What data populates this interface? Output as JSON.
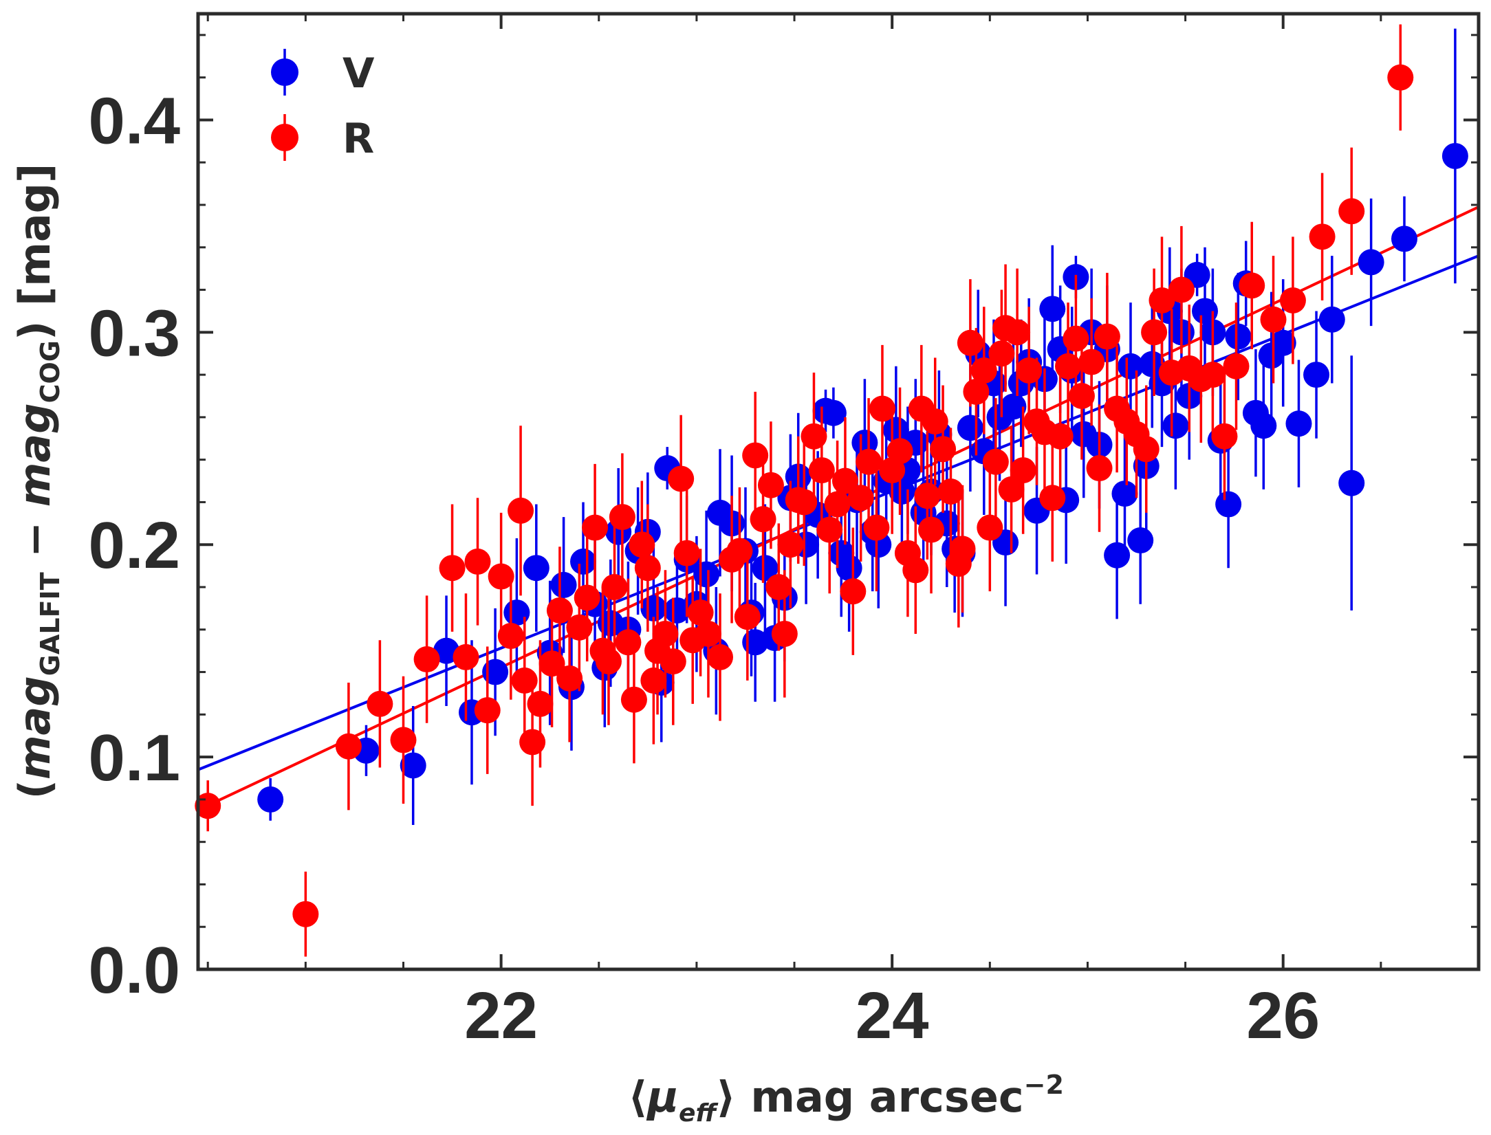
{
  "chart_data": {
    "type": "scatter",
    "xlabel": "⟨μ_eff⟩ mag arcsec⁻²",
    "xlabel_parts": {
      "open": "⟨",
      "mu": "μ",
      "sub": "eff",
      "rest": "⟩ mag arcsec",
      "sup": "−2"
    },
    "ylabel": "(mag_GALFIT − mag_COG) [mag]",
    "ylabel_parts": {
      "open": "(",
      "m1": "mag",
      "s1": "GALFIT",
      "minus": " − ",
      "m2": "mag",
      "s2": "COG",
      "rest": ") [mag]"
    },
    "xlim": [
      20.45,
      27.0
    ],
    "ylim": [
      0.0,
      0.45
    ],
    "xticks": [
      22,
      24,
      26
    ],
    "xtick_labels": [
      "22",
      "24",
      "26"
    ],
    "yticks": [
      0.0,
      0.1,
      0.2,
      0.3,
      0.4
    ],
    "ytick_labels": [
      "0.0",
      "0.1",
      "0.2",
      "0.3",
      "0.4"
    ],
    "grid": false,
    "legend": {
      "placement": "top-left",
      "entries": [
        {
          "label": "V",
          "color": "#0000ee"
        },
        {
          "label": "R",
          "color": "#ff0000"
        }
      ]
    },
    "series": [
      {
        "name": "V",
        "color": "#0000ee",
        "fit": {
          "x": [
            20.45,
            27.0
          ],
          "y": [
            0.094,
            0.336
          ]
        },
        "points": [
          [
            20.82,
            0.08,
            0.01
          ],
          [
            21.31,
            0.103,
            0.012
          ],
          [
            21.55,
            0.096,
            0.028
          ],
          [
            21.72,
            0.15,
            0.026
          ],
          [
            21.85,
            0.121,
            0.034
          ],
          [
            21.97,
            0.14,
            0.03
          ],
          [
            22.08,
            0.168,
            0.035
          ],
          [
            22.18,
            0.189,
            0.03
          ],
          [
            22.25,
            0.149,
            0.034
          ],
          [
            22.32,
            0.181,
            0.032
          ],
          [
            22.36,
            0.133,
            0.03
          ],
          [
            22.42,
            0.192,
            0.028
          ],
          [
            22.48,
            0.172,
            0.03
          ],
          [
            22.53,
            0.142,
            0.028
          ],
          [
            22.56,
            0.163,
            0.03
          ],
          [
            22.6,
            0.206,
            0.03
          ],
          [
            22.65,
            0.16,
            0.032
          ],
          [
            22.7,
            0.197,
            0.03
          ],
          [
            22.75,
            0.206,
            0.028
          ],
          [
            22.78,
            0.17,
            0.03
          ],
          [
            22.82,
            0.135,
            0.028
          ],
          [
            22.85,
            0.236,
            0.01
          ],
          [
            22.9,
            0.169,
            0.028
          ],
          [
            22.95,
            0.193,
            0.03
          ],
          [
            23.0,
            0.172,
            0.032
          ],
          [
            23.05,
            0.186,
            0.03
          ],
          [
            23.1,
            0.15,
            0.03
          ],
          [
            23.12,
            0.215,
            0.03
          ],
          [
            23.18,
            0.21,
            0.032
          ],
          [
            23.25,
            0.197,
            0.03
          ],
          [
            23.28,
            0.168,
            0.03
          ],
          [
            23.3,
            0.154,
            0.028
          ],
          [
            23.35,
            0.189,
            0.03
          ],
          [
            23.4,
            0.156,
            0.03
          ],
          [
            23.45,
            0.175,
            0.03
          ],
          [
            23.48,
            0.222,
            0.03
          ],
          [
            23.52,
            0.232,
            0.03
          ],
          [
            23.56,
            0.2,
            0.028
          ],
          [
            23.62,
            0.214,
            0.03
          ],
          [
            23.66,
            0.263,
            0.01
          ],
          [
            23.7,
            0.262,
            0.012
          ],
          [
            23.74,
            0.196,
            0.03
          ],
          [
            23.78,
            0.189,
            0.03
          ],
          [
            23.82,
            0.221,
            0.03
          ],
          [
            23.86,
            0.248,
            0.03
          ],
          [
            23.9,
            0.206,
            0.028
          ],
          [
            23.93,
            0.2,
            0.03
          ],
          [
            23.97,
            0.23,
            0.03
          ],
          [
            24.02,
            0.254,
            0.03
          ],
          [
            24.05,
            0.225,
            0.03
          ],
          [
            24.08,
            0.235,
            0.03
          ],
          [
            24.12,
            0.248,
            0.03
          ],
          [
            24.16,
            0.215,
            0.03
          ],
          [
            24.2,
            0.225,
            0.03
          ],
          [
            24.24,
            0.252,
            0.03
          ],
          [
            24.28,
            0.21,
            0.03
          ],
          [
            24.32,
            0.198,
            0.03
          ],
          [
            24.36,
            0.196,
            0.03
          ],
          [
            24.4,
            0.255,
            0.03
          ],
          [
            24.44,
            0.29,
            0.03
          ],
          [
            24.47,
            0.244,
            0.03
          ],
          [
            24.52,
            0.276,
            0.03
          ],
          [
            24.55,
            0.26,
            0.03
          ],
          [
            24.58,
            0.201,
            0.03
          ],
          [
            24.62,
            0.265,
            0.03
          ],
          [
            24.66,
            0.276,
            0.03
          ],
          [
            24.7,
            0.286,
            0.03
          ],
          [
            24.74,
            0.216,
            0.03
          ],
          [
            24.78,
            0.278,
            0.03
          ],
          [
            24.82,
            0.311,
            0.03
          ],
          [
            24.86,
            0.292,
            0.03
          ],
          [
            24.89,
            0.221,
            0.03
          ],
          [
            24.92,
            0.282,
            0.03
          ],
          [
            24.94,
            0.326,
            0.01
          ],
          [
            24.98,
            0.252,
            0.03
          ],
          [
            25.02,
            0.3,
            0.03
          ],
          [
            25.06,
            0.247,
            0.03
          ],
          [
            25.1,
            0.292,
            0.03
          ],
          [
            25.15,
            0.195,
            0.03
          ],
          [
            25.19,
            0.224,
            0.03
          ],
          [
            25.22,
            0.284,
            0.03
          ],
          [
            25.27,
            0.202,
            0.03
          ],
          [
            25.3,
            0.237,
            0.03
          ],
          [
            25.33,
            0.285,
            0.03
          ],
          [
            25.38,
            0.276,
            0.03
          ],
          [
            25.42,
            0.31,
            0.03
          ],
          [
            25.45,
            0.256,
            0.03
          ],
          [
            25.48,
            0.3,
            0.03
          ],
          [
            25.52,
            0.27,
            0.03
          ],
          [
            25.56,
            0.327,
            0.01
          ],
          [
            25.6,
            0.31,
            0.03
          ],
          [
            25.64,
            0.3,
            0.03
          ],
          [
            25.68,
            0.249,
            0.03
          ],
          [
            25.72,
            0.219,
            0.03
          ],
          [
            25.77,
            0.298,
            0.03
          ],
          [
            25.81,
            0.323,
            0.02
          ],
          [
            25.86,
            0.262,
            0.03
          ],
          [
            25.9,
            0.256,
            0.03
          ],
          [
            25.94,
            0.289,
            0.03
          ],
          [
            26.0,
            0.295,
            0.03
          ],
          [
            26.08,
            0.257,
            0.03
          ],
          [
            26.17,
            0.28,
            0.03
          ],
          [
            26.25,
            0.306,
            0.03
          ],
          [
            26.35,
            0.229,
            0.06
          ],
          [
            26.45,
            0.333,
            0.03
          ],
          [
            26.62,
            0.344,
            0.02
          ],
          [
            26.88,
            0.383,
            0.06
          ]
        ]
      },
      {
        "name": "R",
        "color": "#ff0000",
        "fit": {
          "x": [
            20.45,
            27.0
          ],
          "y": [
            0.075,
            0.359
          ]
        },
        "points": [
          [
            20.5,
            0.077,
            0.012
          ],
          [
            21.0,
            0.026,
            0.02
          ],
          [
            21.22,
            0.105,
            0.03
          ],
          [
            21.38,
            0.125,
            0.03
          ],
          [
            21.5,
            0.108,
            0.03
          ],
          [
            21.62,
            0.146,
            0.03
          ],
          [
            21.75,
            0.189,
            0.03
          ],
          [
            21.82,
            0.147,
            0.03
          ],
          [
            21.88,
            0.192,
            0.03
          ],
          [
            21.93,
            0.122,
            0.03
          ],
          [
            22.0,
            0.185,
            0.03
          ],
          [
            22.05,
            0.157,
            0.03
          ],
          [
            22.1,
            0.216,
            0.04
          ],
          [
            22.12,
            0.136,
            0.03
          ],
          [
            22.16,
            0.107,
            0.03
          ],
          [
            22.2,
            0.125,
            0.03
          ],
          [
            22.26,
            0.144,
            0.03
          ],
          [
            22.3,
            0.169,
            0.03
          ],
          [
            22.35,
            0.137,
            0.03
          ],
          [
            22.4,
            0.161,
            0.03
          ],
          [
            22.44,
            0.175,
            0.03
          ],
          [
            22.48,
            0.208,
            0.03
          ],
          [
            22.52,
            0.15,
            0.03
          ],
          [
            22.55,
            0.145,
            0.03
          ],
          [
            22.58,
            0.18,
            0.03
          ],
          [
            22.62,
            0.213,
            0.03
          ],
          [
            22.65,
            0.154,
            0.03
          ],
          [
            22.68,
            0.127,
            0.03
          ],
          [
            22.72,
            0.2,
            0.03
          ],
          [
            22.75,
            0.189,
            0.03
          ],
          [
            22.78,
            0.136,
            0.03
          ],
          [
            22.8,
            0.15,
            0.03
          ],
          [
            22.84,
            0.158,
            0.03
          ],
          [
            22.88,
            0.145,
            0.03
          ],
          [
            22.92,
            0.231,
            0.03
          ],
          [
            22.95,
            0.196,
            0.03
          ],
          [
            22.98,
            0.155,
            0.03
          ],
          [
            23.02,
            0.168,
            0.03
          ],
          [
            23.06,
            0.158,
            0.03
          ],
          [
            23.12,
            0.147,
            0.03
          ],
          [
            23.18,
            0.193,
            0.03
          ],
          [
            23.22,
            0.197,
            0.03
          ],
          [
            23.26,
            0.166,
            0.03
          ],
          [
            23.3,
            0.242,
            0.03
          ],
          [
            23.34,
            0.212,
            0.03
          ],
          [
            23.38,
            0.228,
            0.03
          ],
          [
            23.42,
            0.18,
            0.03
          ],
          [
            23.45,
            0.158,
            0.03
          ],
          [
            23.48,
            0.2,
            0.03
          ],
          [
            23.52,
            0.221,
            0.03
          ],
          [
            23.55,
            0.22,
            0.03
          ],
          [
            23.6,
            0.251,
            0.03
          ],
          [
            23.64,
            0.235,
            0.03
          ],
          [
            23.68,
            0.207,
            0.03
          ],
          [
            23.72,
            0.219,
            0.03
          ],
          [
            23.76,
            0.23,
            0.03
          ],
          [
            23.8,
            0.178,
            0.03
          ],
          [
            23.84,
            0.222,
            0.03
          ],
          [
            23.88,
            0.239,
            0.03
          ],
          [
            23.92,
            0.208,
            0.03
          ],
          [
            23.95,
            0.264,
            0.03
          ],
          [
            24.0,
            0.235,
            0.03
          ],
          [
            24.04,
            0.244,
            0.03
          ],
          [
            24.08,
            0.196,
            0.03
          ],
          [
            24.12,
            0.188,
            0.03
          ],
          [
            24.15,
            0.264,
            0.03
          ],
          [
            24.18,
            0.223,
            0.03
          ],
          [
            24.2,
            0.207,
            0.03
          ],
          [
            24.22,
            0.258,
            0.03
          ],
          [
            24.26,
            0.245,
            0.03
          ],
          [
            24.3,
            0.225,
            0.03
          ],
          [
            24.34,
            0.191,
            0.03
          ],
          [
            24.36,
            0.198,
            0.03
          ],
          [
            24.4,
            0.295,
            0.03
          ],
          [
            24.43,
            0.272,
            0.03
          ],
          [
            24.47,
            0.282,
            0.03
          ],
          [
            24.5,
            0.208,
            0.03
          ],
          [
            24.53,
            0.239,
            0.03
          ],
          [
            24.56,
            0.29,
            0.03
          ],
          [
            24.58,
            0.302,
            0.03
          ],
          [
            24.61,
            0.226,
            0.03
          ],
          [
            24.64,
            0.3,
            0.03
          ],
          [
            24.67,
            0.235,
            0.03
          ],
          [
            24.7,
            0.282,
            0.03
          ],
          [
            24.74,
            0.258,
            0.03
          ],
          [
            24.78,
            0.253,
            0.03
          ],
          [
            24.82,
            0.222,
            0.03
          ],
          [
            24.86,
            0.251,
            0.03
          ],
          [
            24.9,
            0.284,
            0.03
          ],
          [
            24.94,
            0.297,
            0.03
          ],
          [
            24.97,
            0.27,
            0.03
          ],
          [
            25.02,
            0.286,
            0.03
          ],
          [
            25.06,
            0.236,
            0.03
          ],
          [
            25.1,
            0.298,
            0.03
          ],
          [
            25.15,
            0.264,
            0.03
          ],
          [
            25.2,
            0.258,
            0.03
          ],
          [
            25.25,
            0.252,
            0.03
          ],
          [
            25.3,
            0.245,
            0.03
          ],
          [
            25.34,
            0.3,
            0.03
          ],
          [
            25.38,
            0.315,
            0.03
          ],
          [
            25.43,
            0.281,
            0.03
          ],
          [
            25.48,
            0.32,
            0.03
          ],
          [
            25.52,
            0.283,
            0.03
          ],
          [
            25.58,
            0.278,
            0.03
          ],
          [
            25.64,
            0.28,
            0.03
          ],
          [
            25.7,
            0.251,
            0.03
          ],
          [
            25.76,
            0.284,
            0.03
          ],
          [
            25.84,
            0.322,
            0.03
          ],
          [
            25.95,
            0.306,
            0.03
          ],
          [
            26.05,
            0.315,
            0.03
          ],
          [
            26.2,
            0.345,
            0.03
          ],
          [
            26.35,
            0.357,
            0.03
          ],
          [
            26.6,
            0.42,
            0.025
          ]
        ]
      }
    ]
  }
}
